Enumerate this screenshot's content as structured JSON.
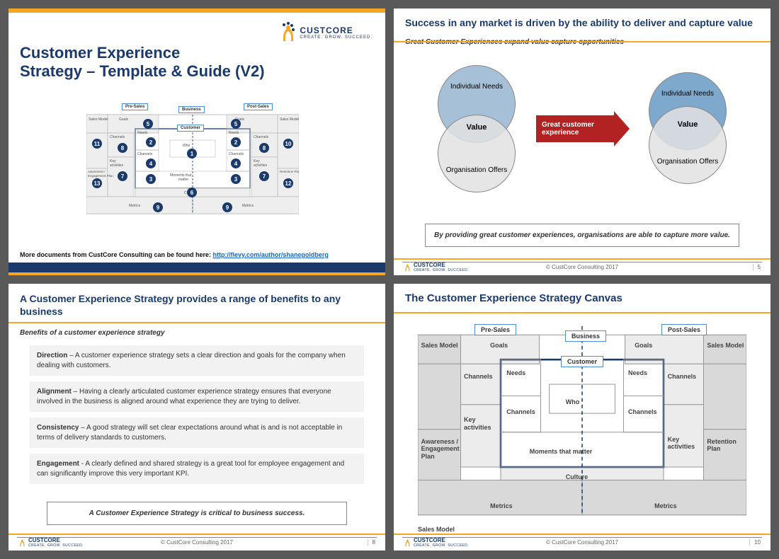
{
  "brand": {
    "name": "CUSTCORE",
    "tagline": "CREATE. GROW. SUCCEED.",
    "accent_yellow": "#f5a623",
    "accent_blue": "#1a3a6e"
  },
  "footer": {
    "copyright": "© CustCore Consulting 2017"
  },
  "slide1": {
    "title_line1": "Customer Experience",
    "title_line2": "Strategy – Template & Guide (V2)",
    "link_prefix": "More documents from CustCore Consulting can be found here: ",
    "link_text": "http://flevy.com/author/shanegoldberg",
    "canvas_tags": {
      "presales": "Pre-Sales",
      "business": "Business",
      "postsales": "Post-Sales",
      "customer": "Customer"
    },
    "canvas_labels": {
      "sales_model": "Sales Model",
      "goals": "Goals",
      "channels": "Channels",
      "needs": "Needs",
      "who": "Who",
      "key_activities": "Key activities",
      "moments": "Moments that matter",
      "awareness": "Awareness / Engagement Plan",
      "retention": "Retention Plan",
      "culture": "Culture",
      "metrics": "Metrics"
    }
  },
  "slide2": {
    "title": "Success in any market is driven by the ability to deliver and capture value",
    "subtitle": "Great Customer Experiences expand value capture opportunities",
    "venn": {
      "top_label": "Individual Needs",
      "bottom_label": "Organisation Offers",
      "center_label": "Value",
      "top_color_1": "#a6c0d8",
      "top_color_2": "#7ea8cc",
      "bottom_color": "#e2e2e2",
      "border_color": "#999999"
    },
    "arrow_label": "Great customer experience",
    "callout": "By providing great customer experiences, organisations are able to capture more value.",
    "page_number": "5"
  },
  "slide3": {
    "title": "A Customer Experience Strategy provides a range of benefits to any business",
    "subtitle": "Benefits of a customer experience strategy",
    "benefits": [
      {
        "head": "Direction",
        "body": " – A customer experience strategy sets a clear direction and goals for the company when dealing with customers."
      },
      {
        "head": "Alignment",
        "body": " – Having a clearly articulated customer experience strategy ensures that everyone involved in the business is aligned around what experience they are trying to deliver."
      },
      {
        "head": "Consistency",
        "body": " – A good strategy will set clear expectations around what is and is not acceptable in terms of delivery standards to customers."
      },
      {
        "head": "Engagement",
        "body": " -  A clearly defined and shared strategy is a great tool for employee engagement and can significantly improve this very important KPI."
      }
    ],
    "callout": "A Customer Experience Strategy is critical to business success.",
    "page_number": "8"
  },
  "slide4": {
    "title": "The Customer Experience Strategy Canvas",
    "tags": {
      "presales": "Pre-Sales",
      "business": "Business",
      "postsales": "Post-Sales",
      "customer": "Customer"
    },
    "labels": {
      "sales_model": "Sales Model",
      "goals": "Goals",
      "channels": "Channels",
      "needs": "Needs",
      "who": "Who",
      "key_activities": "Key activities",
      "moments": "Moments   that   matter",
      "awareness": "Awareness / Engagement Plan",
      "retention": "Retention Plan",
      "culture": "Culture",
      "metrics": "Metrics"
    },
    "page_number": "10",
    "style": {
      "cell_bg_dark": "#d9d9d9",
      "cell_bg_light": "#ececec",
      "border": "#999999",
      "inner_border": "#1a3a6e"
    }
  }
}
